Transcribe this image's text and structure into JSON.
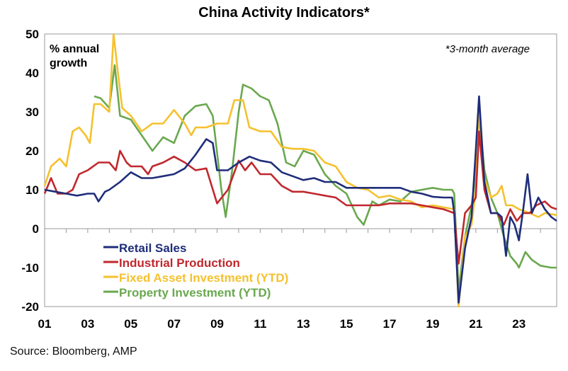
{
  "chart_data": {
    "type": "line",
    "title": "China Activity Indicators*",
    "ylabel": "% annual growth",
    "annotation": "*3-month average",
    "ylim": [
      -20,
      50
    ],
    "yticks": [
      -20,
      -10,
      0,
      10,
      20,
      30,
      40,
      50
    ],
    "xlim": [
      2001,
      2024.75
    ],
    "xticks": [
      {
        "x": 2001,
        "label": "01"
      },
      {
        "x": 2003,
        "label": "03"
      },
      {
        "x": 2005,
        "label": "05"
      },
      {
        "x": 2007,
        "label": "07"
      },
      {
        "x": 2009,
        "label": "09"
      },
      {
        "x": 2011,
        "label": "11"
      },
      {
        "x": 2013,
        "label": "13"
      },
      {
        "x": 2015,
        "label": "15"
      },
      {
        "x": 2017,
        "label": "17"
      },
      {
        "x": 2019,
        "label": "19"
      },
      {
        "x": 2021,
        "label": "21"
      },
      {
        "x": 2023,
        "label": "23"
      }
    ],
    "grid": false,
    "legend_position": "bottom-left",
    "series": [
      {
        "name": "Retail Sales",
        "color": "#1f2d7a",
        "points": [
          [
            2001,
            10
          ],
          [
            2001.5,
            9.5
          ],
          [
            2002,
            9
          ],
          [
            2002.5,
            8.5
          ],
          [
            2003,
            9
          ],
          [
            2003.3,
            9
          ],
          [
            2003.5,
            7
          ],
          [
            2003.8,
            9.5
          ],
          [
            2004,
            10
          ],
          [
            2004.5,
            12
          ],
          [
            2005,
            14.5
          ],
          [
            2005.5,
            13
          ],
          [
            2006,
            13
          ],
          [
            2006.5,
            13.5
          ],
          [
            2007,
            14
          ],
          [
            2007.5,
            15.5
          ],
          [
            2008,
            19
          ],
          [
            2008.5,
            23
          ],
          [
            2008.8,
            22
          ],
          [
            2009,
            15
          ],
          [
            2009.5,
            15
          ],
          [
            2010,
            17
          ],
          [
            2010.5,
            18.5
          ],
          [
            2011,
            17.5
          ],
          [
            2011.5,
            17
          ],
          [
            2012,
            14.5
          ],
          [
            2012.5,
            13.5
          ],
          [
            2013,
            12.5
          ],
          [
            2013.5,
            13
          ],
          [
            2014,
            12
          ],
          [
            2014.5,
            12
          ],
          [
            2015,
            10.5
          ],
          [
            2015.5,
            10.5
          ],
          [
            2016,
            10.5
          ],
          [
            2016.5,
            10.5
          ],
          [
            2017,
            10.5
          ],
          [
            2017.5,
            10.5
          ],
          [
            2018,
            9.5
          ],
          [
            2018.5,
            9
          ],
          [
            2019,
            8.2
          ],
          [
            2019.5,
            8
          ],
          [
            2019.9,
            8
          ],
          [
            2020,
            4
          ],
          [
            2020.2,
            -19
          ],
          [
            2020.5,
            -5
          ],
          [
            2020.8,
            3
          ],
          [
            2021,
            20
          ],
          [
            2021.15,
            34
          ],
          [
            2021.4,
            12
          ],
          [
            2021.7,
            4
          ],
          [
            2022,
            4
          ],
          [
            2022.2,
            3
          ],
          [
            2022.4,
            -7
          ],
          [
            2022.6,
            3
          ],
          [
            2022.8,
            1
          ],
          [
            2023,
            -3
          ],
          [
            2023.2,
            5
          ],
          [
            2023.4,
            14
          ],
          [
            2023.6,
            4
          ],
          [
            2023.9,
            8
          ],
          [
            2024.2,
            5
          ],
          [
            2024.5,
            3
          ],
          [
            2024.75,
            2
          ]
        ]
      },
      {
        "name": "Industrial Production",
        "color": "#c0282d",
        "points": [
          [
            2001,
            9
          ],
          [
            2001.3,
            13
          ],
          [
            2001.6,
            9
          ],
          [
            2002,
            9
          ],
          [
            2002.3,
            10
          ],
          [
            2002.6,
            14
          ],
          [
            2003,
            15
          ],
          [
            2003.5,
            17
          ],
          [
            2004,
            17
          ],
          [
            2004.3,
            15
          ],
          [
            2004.5,
            20
          ],
          [
            2004.8,
            17
          ],
          [
            2005,
            16
          ],
          [
            2005.5,
            16
          ],
          [
            2005.8,
            14
          ],
          [
            2006,
            16
          ],
          [
            2006.5,
            17
          ],
          [
            2007,
            18.5
          ],
          [
            2007.5,
            17
          ],
          [
            2008,
            15
          ],
          [
            2008.5,
            15.5
          ],
          [
            2009,
            6.5
          ],
          [
            2009.5,
            10
          ],
          [
            2010,
            17.5
          ],
          [
            2010.3,
            15
          ],
          [
            2010.6,
            17
          ],
          [
            2011,
            14
          ],
          [
            2011.5,
            14
          ],
          [
            2012,
            11
          ],
          [
            2012.5,
            9.5
          ],
          [
            2013,
            9.5
          ],
          [
            2013.5,
            9
          ],
          [
            2014,
            8.5
          ],
          [
            2014.5,
            8
          ],
          [
            2015,
            6
          ],
          [
            2015.5,
            6
          ],
          [
            2016,
            6
          ],
          [
            2016.5,
            6
          ],
          [
            2017,
            6.5
          ],
          [
            2017.5,
            6.5
          ],
          [
            2018,
            6.5
          ],
          [
            2018.5,
            6
          ],
          [
            2019,
            5.5
          ],
          [
            2019.5,
            5
          ],
          [
            2020,
            4
          ],
          [
            2020.2,
            -9
          ],
          [
            2020.5,
            4
          ],
          [
            2020.8,
            6
          ],
          [
            2021,
            8
          ],
          [
            2021.15,
            25
          ],
          [
            2021.4,
            10
          ],
          [
            2021.7,
            4
          ],
          [
            2022,
            4
          ],
          [
            2022.3,
            1
          ],
          [
            2022.6,
            5
          ],
          [
            2022.9,
            2
          ],
          [
            2023.2,
            4
          ],
          [
            2023.5,
            4
          ],
          [
            2023.8,
            6
          ],
          [
            2024.2,
            7
          ],
          [
            2024.5,
            5.5
          ],
          [
            2024.75,
            5
          ]
        ]
      },
      {
        "name": "Fixed Asset Investment (YTD)",
        "color": "#f5c12e",
        "points": [
          [
            2001,
            11
          ],
          [
            2001.3,
            16
          ],
          [
            2001.7,
            18
          ],
          [
            2002,
            16
          ],
          [
            2002.3,
            25
          ],
          [
            2002.6,
            26
          ],
          [
            2002.9,
            24
          ],
          [
            2003.1,
            22
          ],
          [
            2003.3,
            32
          ],
          [
            2003.6,
            32
          ],
          [
            2004,
            30
          ],
          [
            2004.2,
            50
          ],
          [
            2004.4,
            40
          ],
          [
            2004.6,
            31
          ],
          [
            2005,
            29
          ],
          [
            2005.5,
            25
          ],
          [
            2006,
            27
          ],
          [
            2006.5,
            27
          ],
          [
            2007,
            30.5
          ],
          [
            2007.5,
            27
          ],
          [
            2007.8,
            24
          ],
          [
            2008,
            26
          ],
          [
            2008.5,
            26
          ],
          [
            2009,
            27
          ],
          [
            2009.5,
            27
          ],
          [
            2009.8,
            33
          ],
          [
            2010.2,
            33
          ],
          [
            2010.5,
            26
          ],
          [
            2011,
            25
          ],
          [
            2011.5,
            25
          ],
          [
            2012,
            21
          ],
          [
            2012.5,
            20.5
          ],
          [
            2013,
            20.5
          ],
          [
            2013.5,
            20
          ],
          [
            2014,
            17
          ],
          [
            2014.5,
            16
          ],
          [
            2015,
            12
          ],
          [
            2015.5,
            10.5
          ],
          [
            2016,
            10
          ],
          [
            2016.5,
            8
          ],
          [
            2017,
            8.5
          ],
          [
            2017.5,
            7.5
          ],
          [
            2018,
            7
          ],
          [
            2018.5,
            5.5
          ],
          [
            2019,
            6
          ],
          [
            2019.5,
            5.5
          ],
          [
            2020,
            5
          ],
          [
            2020.2,
            -20
          ],
          [
            2020.5,
            -2
          ],
          [
            2020.8,
            1
          ],
          [
            2021,
            10
          ],
          [
            2021.15,
            31
          ],
          [
            2021.4,
            13
          ],
          [
            2021.7,
            8
          ],
          [
            2022,
            9
          ],
          [
            2022.2,
            11
          ],
          [
            2022.4,
            6
          ],
          [
            2022.7,
            6
          ],
          [
            2023,
            5
          ],
          [
            2023.5,
            4
          ],
          [
            2023.9,
            3
          ],
          [
            2024.2,
            4
          ],
          [
            2024.75,
            3.5
          ]
        ]
      },
      {
        "name": "Property Investment (YTD)",
        "color": "#6aa84f",
        "points": [
          [
            2003.3,
            34
          ],
          [
            2003.6,
            33.5
          ],
          [
            2004,
            31
          ],
          [
            2004.25,
            42
          ],
          [
            2004.5,
            29
          ],
          [
            2005,
            28
          ],
          [
            2005.5,
            24
          ],
          [
            2006,
            20
          ],
          [
            2006.5,
            23.5
          ],
          [
            2007,
            22
          ],
          [
            2007.5,
            29
          ],
          [
            2008,
            31.5
          ],
          [
            2008.5,
            32
          ],
          [
            2008.8,
            29
          ],
          [
            2009.2,
            10
          ],
          [
            2009.4,
            3
          ],
          [
            2009.7,
            15
          ],
          [
            2010,
            30
          ],
          [
            2010.2,
            37
          ],
          [
            2010.6,
            36
          ],
          [
            2011,
            34
          ],
          [
            2011.4,
            33
          ],
          [
            2011.8,
            27
          ],
          [
            2012.2,
            17
          ],
          [
            2012.6,
            16
          ],
          [
            2013,
            20
          ],
          [
            2013.5,
            19
          ],
          [
            2014,
            14
          ],
          [
            2014.5,
            11
          ],
          [
            2015,
            9
          ],
          [
            2015.5,
            3
          ],
          [
            2015.8,
            1
          ],
          [
            2016.2,
            7
          ],
          [
            2016.5,
            6
          ],
          [
            2017,
            7.5
          ],
          [
            2017.5,
            7
          ],
          [
            2018,
            9.5
          ],
          [
            2018.5,
            10
          ],
          [
            2019,
            10.5
          ],
          [
            2019.5,
            10
          ],
          [
            2019.9,
            10
          ],
          [
            2020,
            9
          ],
          [
            2020.2,
            -16
          ],
          [
            2020.5,
            -2
          ],
          [
            2020.8,
            6
          ],
          [
            2021,
            14
          ],
          [
            2021.15,
            29
          ],
          [
            2021.4,
            15
          ],
          [
            2021.7,
            8
          ],
          [
            2022,
            4
          ],
          [
            2022.3,
            -2
          ],
          [
            2022.6,
            -7
          ],
          [
            2022.9,
            -9
          ],
          [
            2023,
            -10
          ],
          [
            2023.3,
            -6
          ],
          [
            2023.6,
            -8
          ],
          [
            2024,
            -9.5
          ],
          [
            2024.5,
            -10
          ],
          [
            2024.75,
            -10
          ]
        ]
      }
    ]
  },
  "source": "Source: Bloomberg, AMP"
}
